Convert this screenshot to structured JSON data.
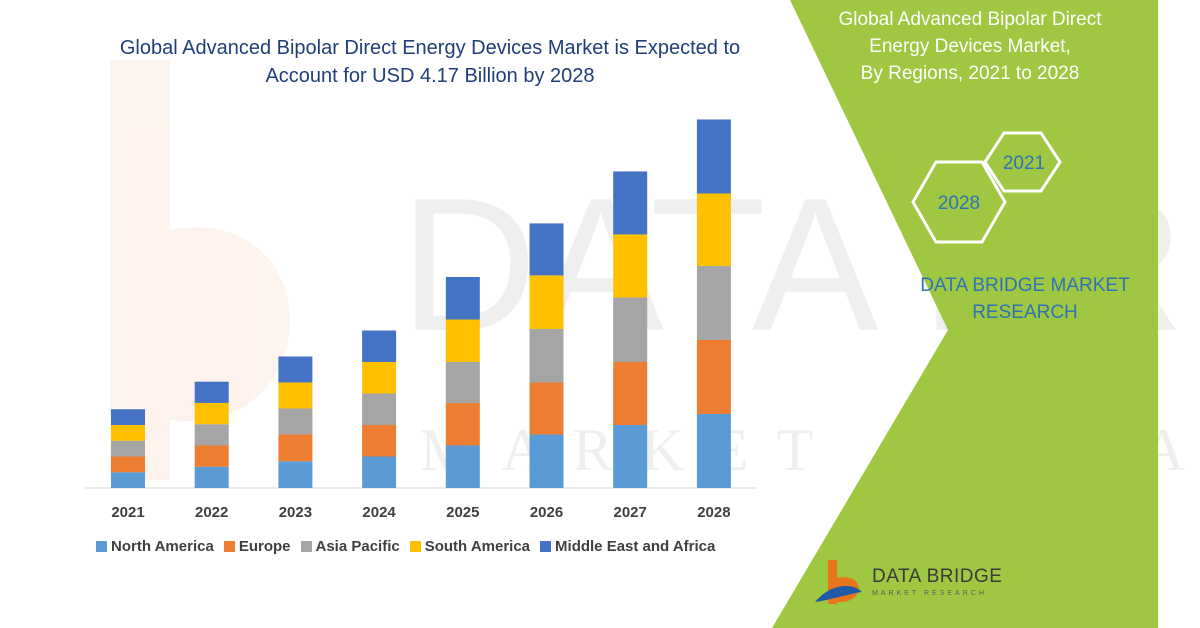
{
  "title_line1": "Global Advanced Bipolar Direct Energy Devices Market is Expected to",
  "title_line2": "Account for USD 4.17 Billion by 2028",
  "panel": {
    "title_line1": "Global Advanced Bipolar Direct",
    "title_line2": "Energy Devices Market,",
    "title_line3": "By Regions, 2021 to 2028",
    "hex_1": "2021",
    "hex_2": "2028",
    "brand_line1": "DATA BRIDGE MARKET",
    "brand_line2": "RESEARCH"
  },
  "logo": {
    "name": "DATA BRIDGE",
    "subtitle": "MARKET RESEARCH"
  },
  "watermark": {
    "line1": "DATA BRIDGE",
    "line2": "MARKET RESEARCH"
  },
  "colors": {
    "panel_green": "#9fc741",
    "title_blue": "#1f3e7a",
    "brand_blue": "#2e74b5",
    "logo_orange": "#e8741c",
    "logo_blue": "#1f5aa6"
  },
  "chart_data": {
    "type": "bar",
    "stacked": true,
    "categories": [
      "2021",
      "2022",
      "2023",
      "2024",
      "2025",
      "2026",
      "2027",
      "2028"
    ],
    "series": [
      {
        "name": "North America",
        "color": "#5b9bd5",
        "values": [
          1.0,
          1.35,
          1.7,
          2.0,
          2.7,
          3.4,
          4.0,
          4.7
        ]
      },
      {
        "name": "Europe",
        "color": "#ed7d31",
        "values": [
          1.0,
          1.35,
          1.7,
          2.0,
          2.7,
          3.3,
          4.0,
          4.7
        ]
      },
      {
        "name": "Asia Pacific",
        "color": "#a5a5a5",
        "values": [
          1.0,
          1.35,
          1.65,
          2.0,
          2.6,
          3.4,
          4.1,
          4.7
        ]
      },
      {
        "name": "South America",
        "color": "#ffc000",
        "values": [
          1.0,
          1.35,
          1.65,
          2.0,
          2.7,
          3.4,
          4.0,
          4.6
        ]
      },
      {
        "name": "Middle East and Africa",
        "color": "#4472c4",
        "values": [
          1.0,
          1.35,
          1.65,
          2.0,
          2.7,
          3.3,
          4.0,
          4.7
        ]
      }
    ],
    "legend_position": "bottom",
    "grid": false,
    "ylim": [
      0,
      24
    ]
  }
}
